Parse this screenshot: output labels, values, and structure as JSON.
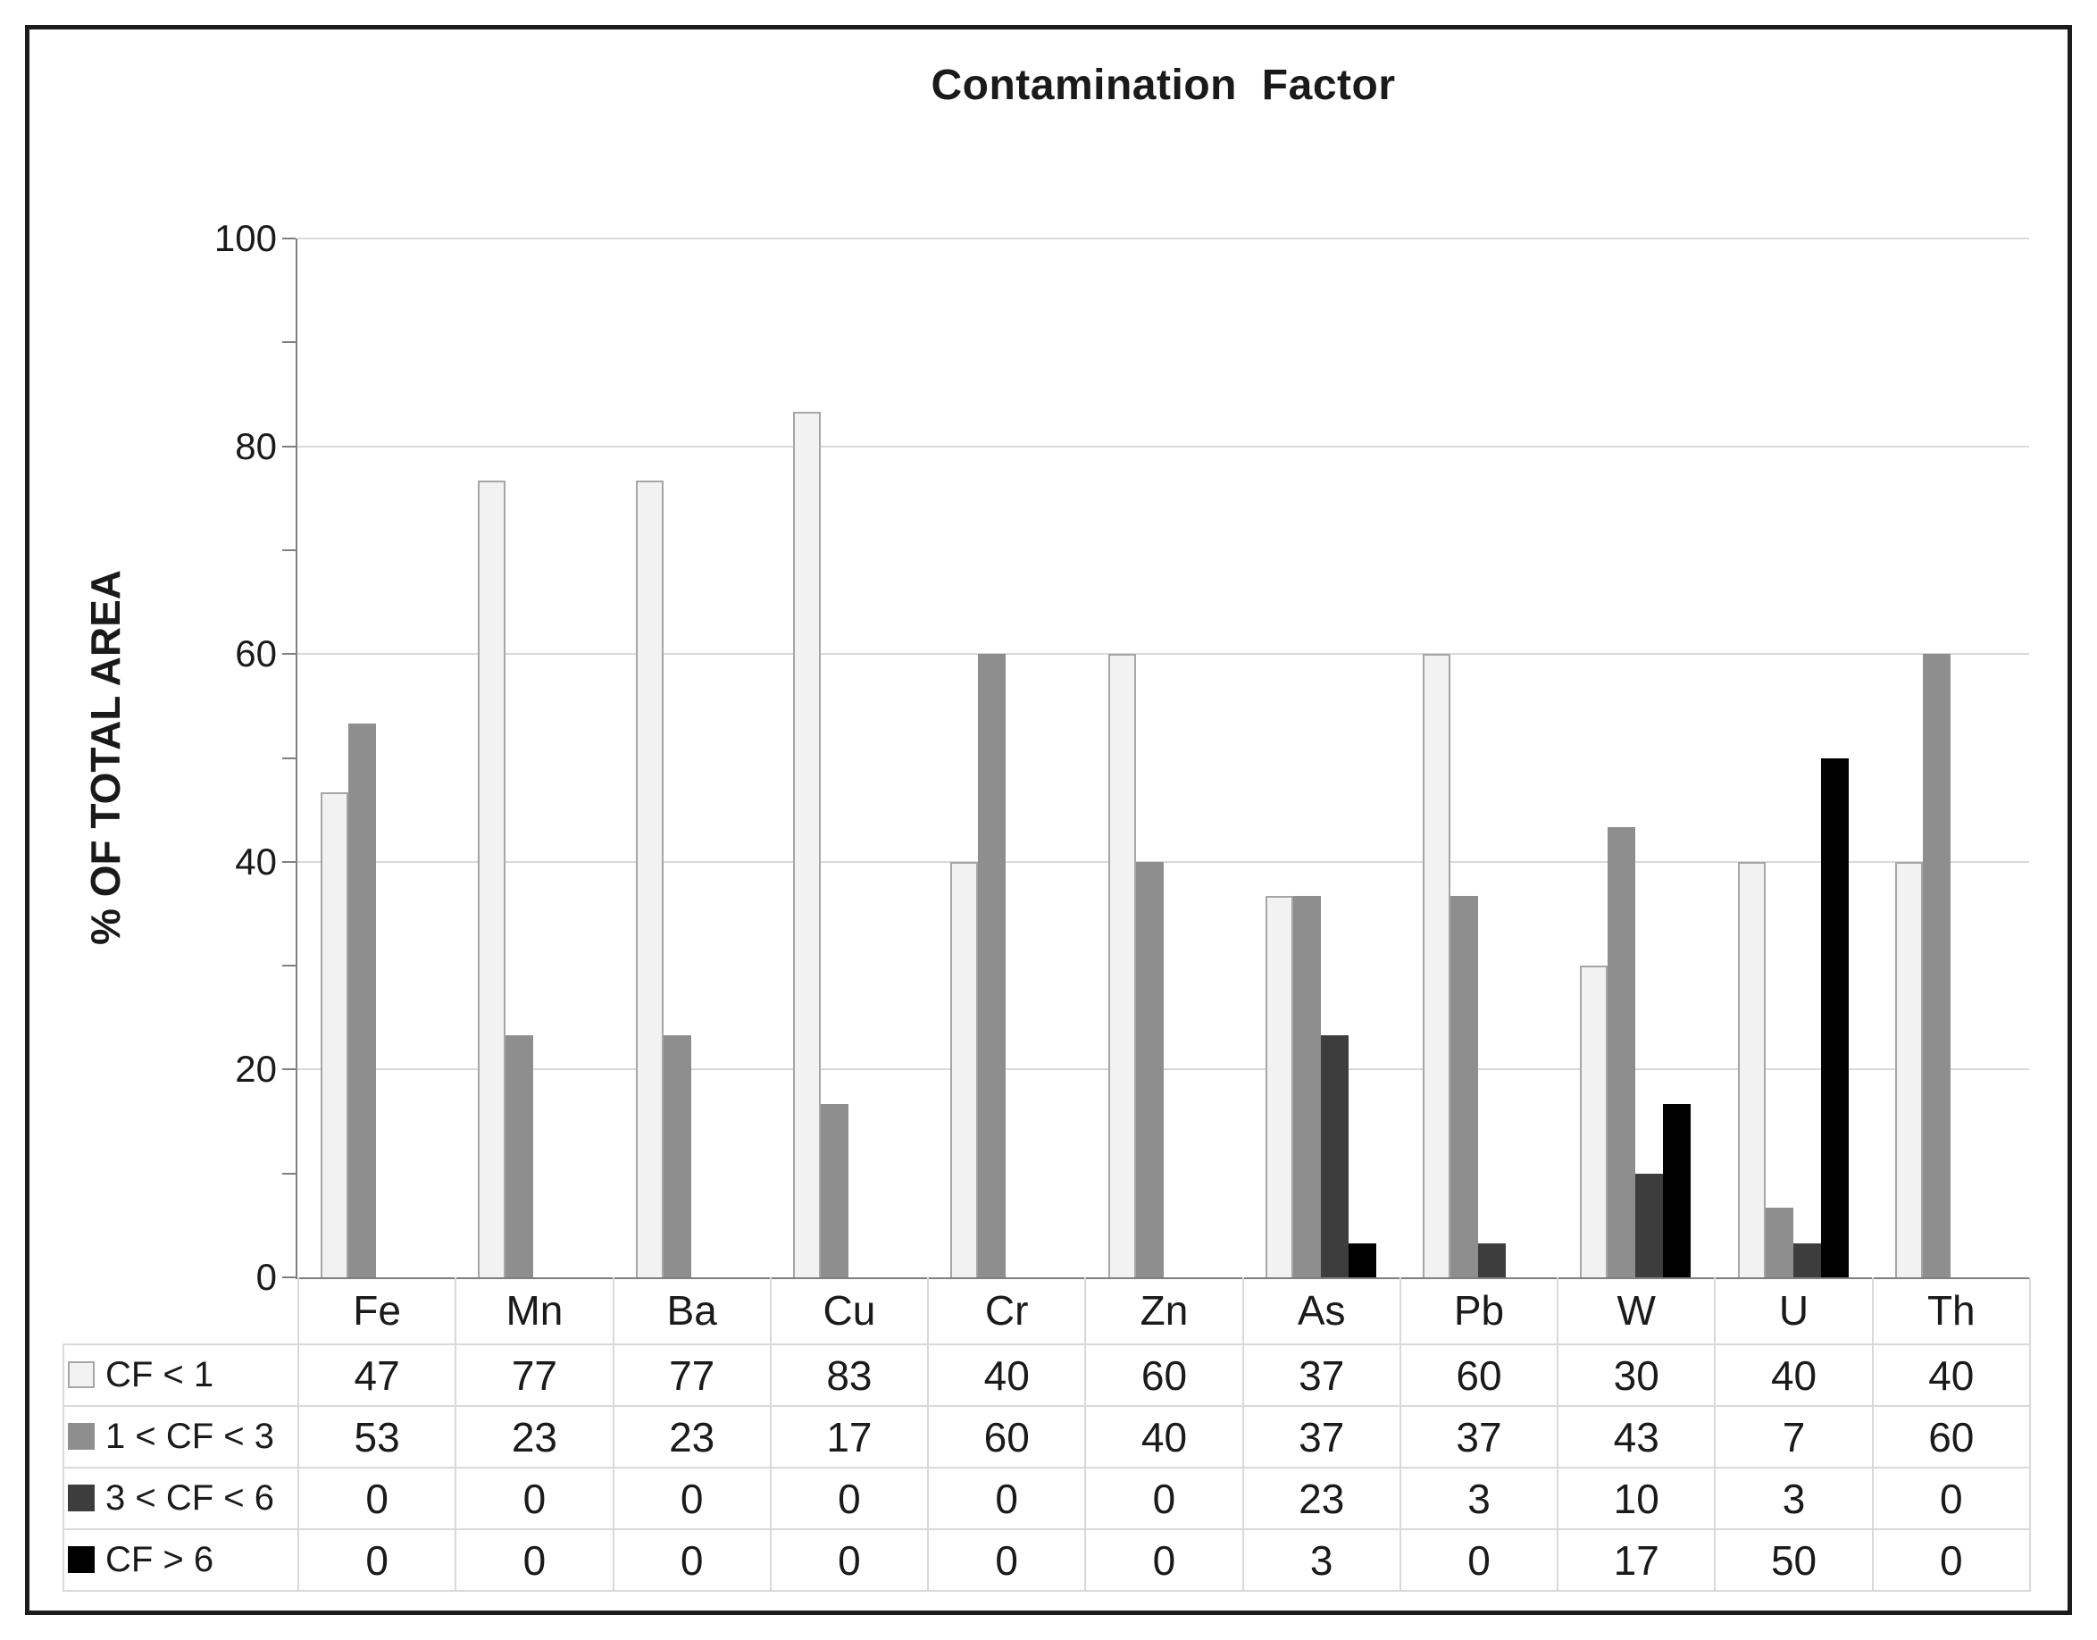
{
  "title": "Contamination Factor",
  "y_axis": {
    "label": "% OF TOTAL AREA",
    "tick_labels": [
      "0",
      "20",
      "40",
      "60",
      "80",
      "100"
    ],
    "major_step": 20,
    "minor_step": 10,
    "max": 100
  },
  "colors": {
    "grid": "#d9d9d9",
    "axis": "#7f7f7f",
    "table_border": "#d9d9d9",
    "text": "#1a1a1a"
  },
  "chart_data": {
    "type": "bar",
    "title": "Contamination Factor",
    "ylabel": "% OF TOTAL AREA",
    "ylim": [
      0,
      100
    ],
    "grid": true,
    "legend_position": "data-table-left",
    "categories": [
      "Fe",
      "Mn",
      "Ba",
      "Cu",
      "Cr",
      "Zn",
      "As",
      "Pb",
      "W",
      "U",
      "Th"
    ],
    "series": [
      {
        "name": "CF < 1",
        "color": "#f2f2f2",
        "border": "#a6a6a6",
        "values": [
          47,
          77,
          77,
          83,
          40,
          60,
          37,
          60,
          30,
          40,
          40
        ],
        "bar_heights": [
          46.7,
          76.7,
          76.7,
          83.3,
          40,
          60,
          36.7,
          60,
          30,
          40,
          40
        ]
      },
      {
        "name": "1 < CF < 3",
        "color": "#8e8e8e",
        "border": "",
        "values": [
          53,
          23,
          23,
          17,
          60,
          40,
          37,
          37,
          43,
          7,
          60
        ],
        "bar_heights": [
          53.3,
          23.3,
          23.3,
          16.7,
          60,
          40,
          36.7,
          36.7,
          43.3,
          6.7,
          60
        ]
      },
      {
        "name": "3 < CF < 6",
        "color": "#3d3d3d",
        "border": "",
        "values": [
          0,
          0,
          0,
          0,
          0,
          0,
          23,
          3,
          10,
          3,
          0
        ],
        "bar_heights": [
          0,
          0,
          0,
          0,
          0,
          0,
          23.3,
          3.3,
          10,
          3.3,
          0
        ]
      },
      {
        "name": "CF > 6",
        "color": "#000000",
        "border": "",
        "values": [
          0,
          0,
          0,
          0,
          0,
          0,
          3,
          0,
          17,
          50,
          0
        ],
        "bar_heights": [
          0,
          0,
          0,
          0,
          0,
          0,
          3.3,
          0,
          16.7,
          50,
          0
        ]
      }
    ]
  }
}
